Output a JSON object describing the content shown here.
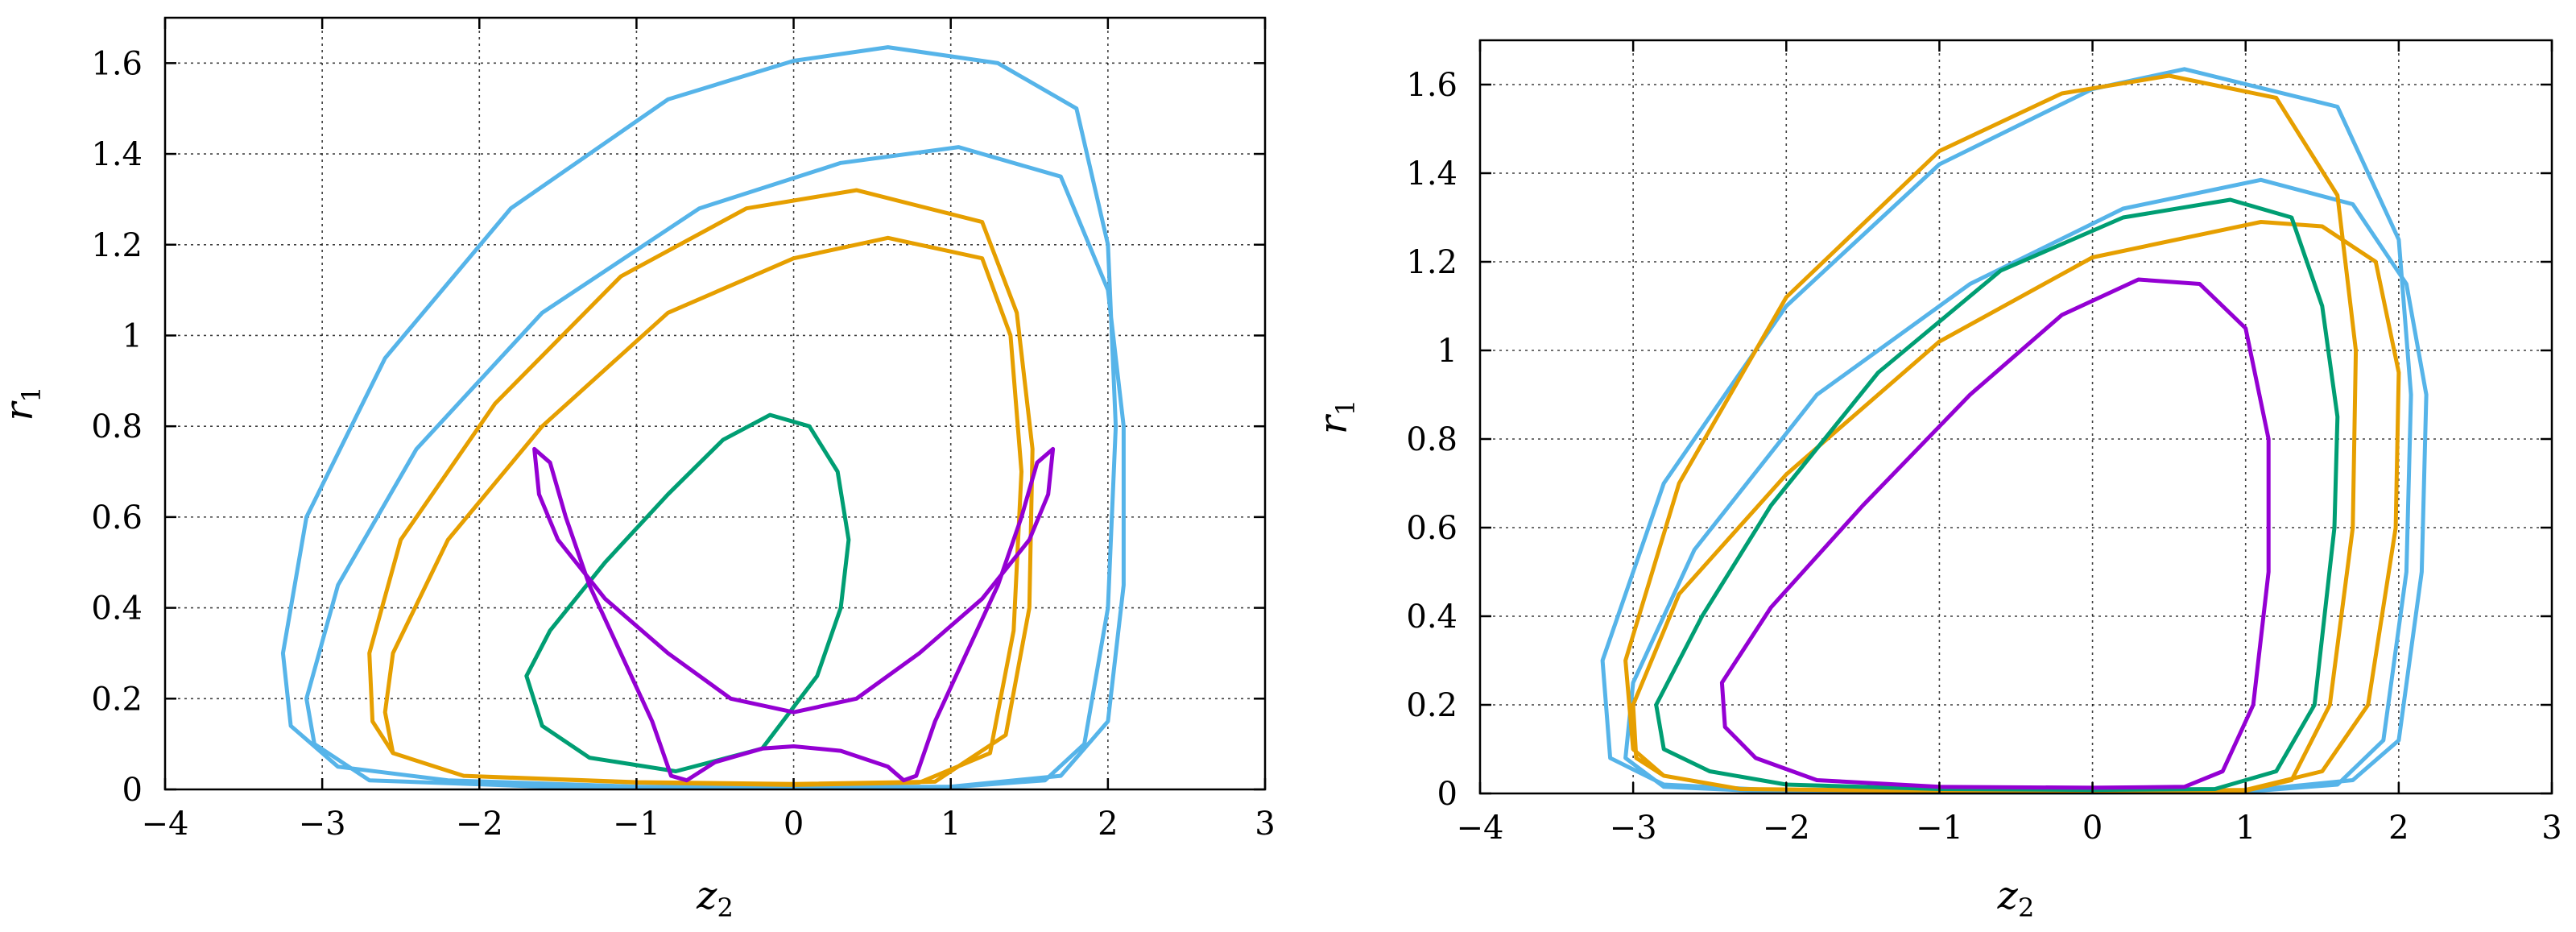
{
  "chart_data": [
    {
      "type": "line",
      "xlabel": "z",
      "xlabel_sub": "2",
      "ylabel": "r",
      "ylabel_sub": "1",
      "xlim": [
        -4,
        3
      ],
      "ylim": [
        0,
        1.7
      ],
      "xticks": [
        -4,
        -3,
        -2,
        -1,
        0,
        1,
        2,
        3
      ],
      "xtick_labels": [
        "−4",
        "−3",
        "−2",
        "−1",
        "0",
        "1",
        "2",
        "3"
      ],
      "yticks": [
        0,
        0.2,
        0.4,
        0.6,
        0.8,
        1,
        1.2,
        1.4,
        1.6
      ],
      "ytick_labels": [
        "0",
        "0.2",
        "0.4",
        "0.6",
        "0.8",
        "1",
        "1.2",
        "1.4",
        "1.6"
      ],
      "grid": true,
      "series": [
        {
          "color": "#56b4e9",
          "points": [
            [
              -2.7,
              0.02
            ],
            [
              -1.5,
              0.005
            ],
            [
              0,
              0.004
            ],
            [
              1,
              0.005
            ],
            [
              1.6,
              0.02
            ],
            [
              1.85,
              0.1
            ],
            [
              2.0,
              0.4
            ],
            [
              2.05,
              0.8
            ],
            [
              2.0,
              1.2
            ],
            [
              1.8,
              1.5
            ],
            [
              1.3,
              1.6
            ],
            [
              0.6,
              1.635
            ],
            [
              0,
              1.605
            ],
            [
              -0.8,
              1.52
            ],
            [
              -1.8,
              1.28
            ],
            [
              -2.6,
              0.95
            ],
            [
              -3.1,
              0.6
            ],
            [
              -3.25,
              0.3
            ],
            [
              -3.2,
              0.14
            ],
            [
              -2.9,
              0.05
            ],
            [
              -2.2,
              0.02
            ],
            [
              -1.0,
              0.006
            ],
            [
              0,
              0.005
            ],
            [
              1.0,
              0.006
            ],
            [
              1.7,
              0.03
            ],
            [
              2.0,
              0.15
            ],
            [
              2.1,
              0.45
            ],
            [
              2.1,
              0.8
            ],
            [
              2.0,
              1.1
            ],
            [
              1.7,
              1.35
            ],
            [
              1.05,
              1.415
            ],
            [
              0.3,
              1.38
            ],
            [
              -0.6,
              1.28
            ],
            [
              -1.6,
              1.05
            ],
            [
              -2.4,
              0.75
            ],
            [
              -2.9,
              0.45
            ],
            [
              -3.1,
              0.2
            ],
            [
              -3.05,
              0.1
            ],
            [
              -2.7,
              0.02
            ]
          ]
        },
        {
          "color": "#e69f00",
          "points": [
            [
              -2.55,
              0.08
            ],
            [
              -2.1,
              0.03
            ],
            [
              -1.0,
              0.015
            ],
            [
              0,
              0.01
            ],
            [
              0.8,
              0.015
            ],
            [
              1.25,
              0.08
            ],
            [
              1.4,
              0.35
            ],
            [
              1.45,
              0.7
            ],
            [
              1.38,
              1.0
            ],
            [
              1.2,
              1.17
            ],
            [
              0.6,
              1.215
            ],
            [
              0,
              1.17
            ],
            [
              -0.8,
              1.05
            ],
            [
              -1.6,
              0.8
            ],
            [
              -2.2,
              0.55
            ],
            [
              -2.55,
              0.3
            ],
            [
              -2.6,
              0.17
            ],
            [
              -2.55,
              0.08
            ],
            [
              -2.1,
              0.03
            ],
            [
              -1.0,
              0.016
            ],
            [
              0,
              0.012
            ],
            [
              0.9,
              0.017
            ],
            [
              1.35,
              0.12
            ],
            [
              1.5,
              0.4
            ],
            [
              1.52,
              0.75
            ],
            [
              1.42,
              1.05
            ],
            [
              1.2,
              1.25
            ],
            [
              0.4,
              1.32
            ],
            [
              -0.3,
              1.28
            ],
            [
              -1.1,
              1.13
            ],
            [
              -1.9,
              0.85
            ],
            [
              -2.5,
              0.55
            ],
            [
              -2.7,
              0.3
            ],
            [
              -2.68,
              0.15
            ],
            [
              -2.55,
              0.08
            ]
          ]
        },
        {
          "color": "#009e73",
          "points": [
            [
              -0.75,
              0.04
            ],
            [
              -0.2,
              0.09
            ],
            [
              0.15,
              0.25
            ],
            [
              0.3,
              0.4
            ],
            [
              0.35,
              0.55
            ],
            [
              0.28,
              0.7
            ],
            [
              0.1,
              0.8
            ],
            [
              -0.15,
              0.825
            ],
            [
              -0.45,
              0.77
            ],
            [
              -0.8,
              0.65
            ],
            [
              -1.2,
              0.5
            ],
            [
              -1.55,
              0.35
            ],
            [
              -1.7,
              0.25
            ],
            [
              -1.6,
              0.14
            ],
            [
              -1.3,
              0.07
            ],
            [
              -0.75,
              0.04
            ]
          ]
        },
        {
          "color": "#9400d3",
          "points": [
            [
              -1.65,
              0.75
            ],
            [
              -1.55,
              0.72
            ],
            [
              -1.45,
              0.6
            ],
            [
              -1.3,
              0.45
            ],
            [
              -1.1,
              0.3
            ],
            [
              -0.9,
              0.15
            ],
            [
              -0.78,
              0.03
            ],
            [
              -0.68,
              0.02
            ],
            [
              -0.5,
              0.06
            ],
            [
              -0.2,
              0.09
            ],
            [
              0,
              0.095
            ],
            [
              0.3,
              0.085
            ],
            [
              0.6,
              0.05
            ],
            [
              0.7,
              0.02
            ],
            [
              0.78,
              0.03
            ],
            [
              0.9,
              0.15
            ],
            [
              1.1,
              0.3
            ],
            [
              1.3,
              0.45
            ],
            [
              1.45,
              0.6
            ],
            [
              1.55,
              0.72
            ],
            [
              1.65,
              0.75
            ],
            [
              1.62,
              0.65
            ],
            [
              1.5,
              0.55
            ],
            [
              1.2,
              0.42
            ],
            [
              0.8,
              0.3
            ],
            [
              0.4,
              0.2
            ],
            [
              0,
              0.17
            ],
            [
              -0.4,
              0.2
            ],
            [
              -0.8,
              0.3
            ],
            [
              -1.2,
              0.42
            ],
            [
              -1.5,
              0.55
            ],
            [
              -1.62,
              0.65
            ],
            [
              -1.65,
              0.75
            ]
          ]
        }
      ]
    },
    {
      "type": "line",
      "xlabel": "z",
      "xlabel_sub": "2",
      "ylabel": "r",
      "ylabel_sub": "1",
      "xlim": [
        -4,
        3
      ],
      "ylim": [
        0,
        1.7
      ],
      "xticks": [
        -4,
        -3,
        -2,
        -1,
        0,
        1,
        2,
        3
      ],
      "xtick_labels": [
        "−4",
        "−3",
        "−2",
        "−1",
        "0",
        "1",
        "2",
        "3"
      ],
      "yticks": [
        0,
        0.2,
        0.4,
        0.6,
        0.8,
        1,
        1.2,
        1.4,
        1.6
      ],
      "ytick_labels": [
        "0",
        "0.2",
        "0.4",
        "0.6",
        "0.8",
        "1",
        "1.2",
        "1.4",
        "1.6"
      ],
      "grid": true,
      "series": [
        {
          "color": "#56b4e9",
          "points": [
            [
              -2.8,
              0.015
            ],
            [
              -2,
              0.003
            ],
            [
              -1,
              0.002
            ],
            [
              0,
              0.002
            ],
            [
              1,
              0.004
            ],
            [
              1.6,
              0.02
            ],
            [
              1.9,
              0.12
            ],
            [
              2.05,
              0.5
            ],
            [
              2.08,
              0.9
            ],
            [
              2.0,
              1.25
            ],
            [
              1.6,
              1.55
            ],
            [
              0.6,
              1.635
            ],
            [
              0,
              1.59
            ],
            [
              -1,
              1.42
            ],
            [
              -2,
              1.1
            ],
            [
              -2.8,
              0.7
            ],
            [
              -3.2,
              0.3
            ],
            [
              -3.15,
              0.08
            ],
            [
              -2.8,
              0.02
            ],
            [
              -2,
              0.006
            ],
            [
              -1,
              0.004
            ],
            [
              0,
              0.004
            ],
            [
              1,
              0.006
            ],
            [
              1.7,
              0.03
            ],
            [
              2.0,
              0.12
            ],
            [
              2.15,
              0.5
            ],
            [
              2.18,
              0.9
            ],
            [
              2.05,
              1.15
            ],
            [
              1.7,
              1.33
            ],
            [
              1.1,
              1.385
            ],
            [
              0.2,
              1.32
            ],
            [
              -0.8,
              1.15
            ],
            [
              -1.8,
              0.9
            ],
            [
              -2.6,
              0.55
            ],
            [
              -3.0,
              0.25
            ],
            [
              -3.05,
              0.08
            ],
            [
              -2.8,
              0.015
            ]
          ]
        },
        {
          "color": "#e69f00",
          "points": [
            [
              -2.8,
              0.04
            ],
            [
              -2.3,
              0.01
            ],
            [
              -1,
              0.005
            ],
            [
              0,
              0.004
            ],
            [
              1,
              0.006
            ],
            [
              1.3,
              0.03
            ],
            [
              1.55,
              0.2
            ],
            [
              1.7,
              0.6
            ],
            [
              1.72,
              1.0
            ],
            [
              1.6,
              1.35
            ],
            [
              1.2,
              1.57
            ],
            [
              0.5,
              1.62
            ],
            [
              -0.2,
              1.58
            ],
            [
              -1,
              1.45
            ],
            [
              -2,
              1.12
            ],
            [
              -2.7,
              0.7
            ],
            [
              -3.05,
              0.3
            ],
            [
              -3.0,
              0.1
            ],
            [
              -2.8,
              0.04
            ],
            [
              -2.3,
              0.01
            ],
            [
              -1,
              0.006
            ],
            [
              0,
              0.005
            ],
            [
              1,
              0.008
            ],
            [
              1.5,
              0.05
            ],
            [
              1.8,
              0.2
            ],
            [
              1.98,
              0.6
            ],
            [
              2.0,
              0.95
            ],
            [
              1.85,
              1.2
            ],
            [
              1.5,
              1.28
            ],
            [
              1.1,
              1.29
            ],
            [
              0,
              1.21
            ],
            [
              -1,
              1.02
            ],
            [
              -2,
              0.72
            ],
            [
              -2.7,
              0.45
            ],
            [
              -3.0,
              0.2
            ],
            [
              -2.98,
              0.08
            ],
            [
              -2.8,
              0.04
            ]
          ]
        },
        {
          "color": "#009e73",
          "points": [
            [
              -2.5,
              0.05
            ],
            [
              -2,
              0.02
            ],
            [
              -1,
              0.01
            ],
            [
              0,
              0.008
            ],
            [
              0.8,
              0.01
            ],
            [
              1.2,
              0.05
            ],
            [
              1.45,
              0.2
            ],
            [
              1.58,
              0.6
            ],
            [
              1.6,
              0.85
            ],
            [
              1.5,
              1.1
            ],
            [
              1.3,
              1.3
            ],
            [
              0.9,
              1.34
            ],
            [
              0.2,
              1.3
            ],
            [
              -0.6,
              1.18
            ],
            [
              -1.4,
              0.95
            ],
            [
              -2.1,
              0.65
            ],
            [
              -2.55,
              0.4
            ],
            [
              -2.85,
              0.2
            ],
            [
              -2.8,
              0.1
            ],
            [
              -2.5,
              0.05
            ]
          ]
        },
        {
          "color": "#9400d3",
          "points": [
            [
              -2.2,
              0.08
            ],
            [
              -1.8,
              0.03
            ],
            [
              -1,
              0.015
            ],
            [
              0,
              0.013
            ],
            [
              0.6,
              0.015
            ],
            [
              0.85,
              0.05
            ],
            [
              1.05,
              0.2
            ],
            [
              1.15,
              0.5
            ],
            [
              1.15,
              0.8
            ],
            [
              1.0,
              1.05
            ],
            [
              0.7,
              1.15
            ],
            [
              0.3,
              1.16
            ],
            [
              -0.2,
              1.08
            ],
            [
              -0.8,
              0.9
            ],
            [
              -1.5,
              0.65
            ],
            [
              -2.1,
              0.42
            ],
            [
              -2.42,
              0.25
            ],
            [
              -2.4,
              0.15
            ],
            [
              -2.2,
              0.08
            ]
          ]
        }
      ]
    }
  ]
}
